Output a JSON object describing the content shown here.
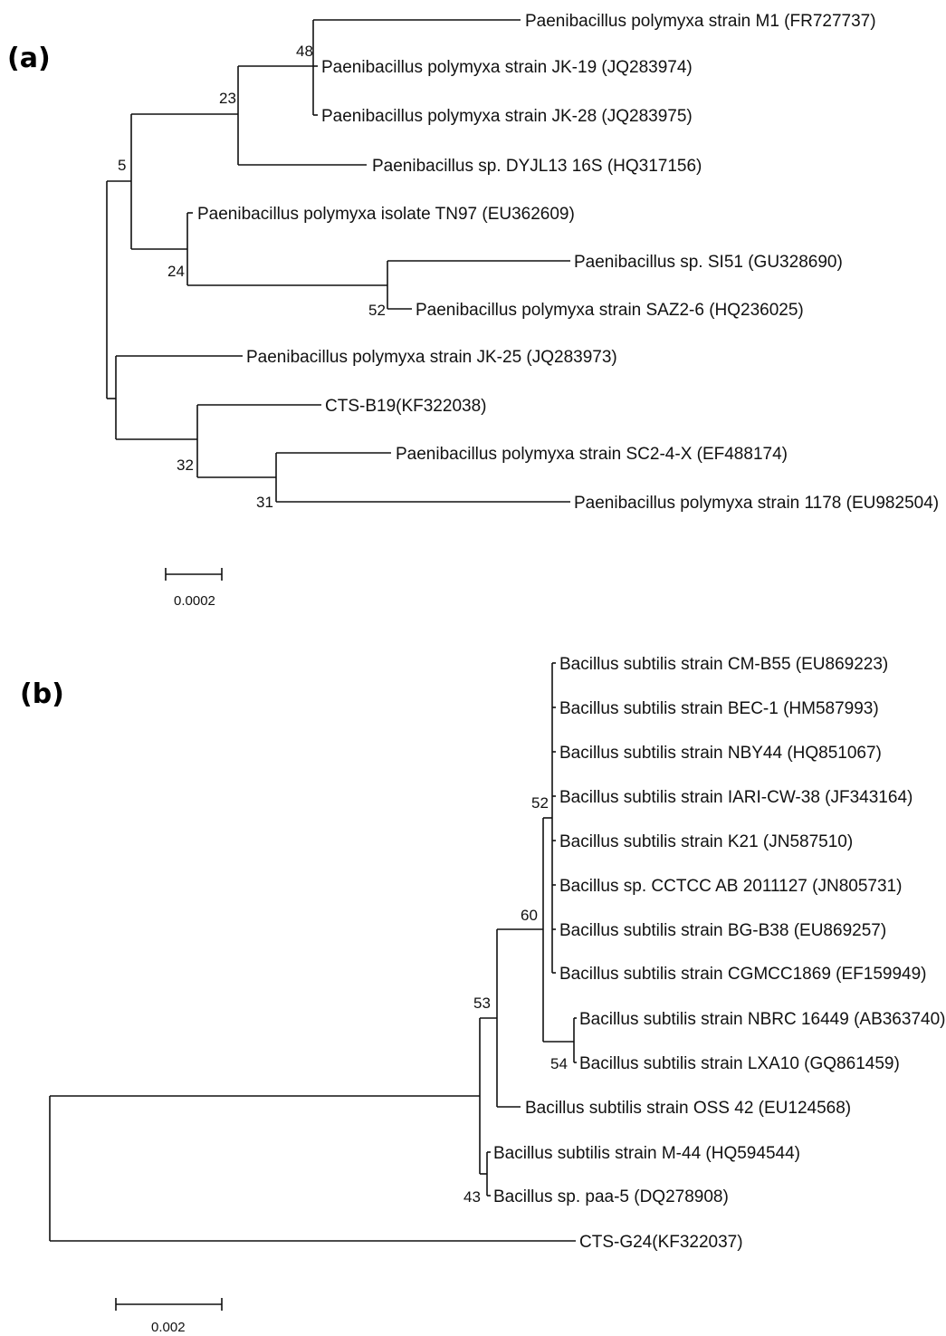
{
  "panel_a": {
    "label": "(a)",
    "leaves": {
      "m1": "Paenibacillus polymyxa strain M1 (FR727737)",
      "jk19": "Paenibacillus polymyxa strain JK-19 (JQ283974)",
      "jk28": "Paenibacillus polymyxa strain JK-28 (JQ283975)",
      "dyjl13": "Paenibacillus sp. DYJL13 16S (HQ317156)",
      "tn97": "Paenibacillus polymyxa isolate TN97 (EU362609)",
      "si51": "Paenibacillus sp. SI51 (GU328690)",
      "saz26": "Paenibacillus polymyxa strain SAZ2-6 (HQ236025)",
      "jk25": "Paenibacillus polymyxa strain JK-25 (JQ283973)",
      "ctsb19": "CTS-B19(KF322038)",
      "sc24x": "Paenibacillus polymyxa strain SC2-4-X (EF488174)",
      "s1178": "Paenibacillus polymyxa strain 1178 (EU982504)"
    },
    "bootstrap": {
      "n48": "48",
      "n23": "23",
      "n5": "5",
      "n24": "24",
      "n52": "52",
      "n32": "32",
      "n31": "31"
    },
    "scale_label": "0.0002"
  },
  "panel_b": {
    "label": "(b)",
    "leaves": {
      "cmb55": "Bacillus subtilis strain CM-B55 (EU869223)",
      "bec1": "Bacillus subtilis strain BEC-1 (HM587993)",
      "nby44": "Bacillus subtilis strain NBY44 (HQ851067)",
      "iari": "Bacillus subtilis strain IARI-CW-38 (JF343164)",
      "k21": "Bacillus subtilis strain K21 (JN587510)",
      "cctcc": "Bacillus sp. CCTCC AB 2011127 (JN805731)",
      "bgb38": "Bacillus subtilis strain BG-B38 (EU869257)",
      "cgmcc": "Bacillus subtilis strain CGMCC1869 (EF159949)",
      "nbrc": "Bacillus subtilis strain NBRC 16449 (AB363740)",
      "lxa10": "Bacillus subtilis strain LXA10 (GQ861459)",
      "oss42": "Bacillus subtilis strain OSS 42 (EU124568)",
      "m44": "Bacillus subtilis strain M-44 (HQ594544)",
      "paa5": "Bacillus sp. paa-5 (DQ278908)",
      "ctsg24": "CTS-G24(KF322037)"
    },
    "bootstrap": {
      "n52": "52",
      "n60": "60",
      "n53": "53",
      "n54": "54",
      "n43": "43"
    },
    "scale_label": "0.002"
  }
}
